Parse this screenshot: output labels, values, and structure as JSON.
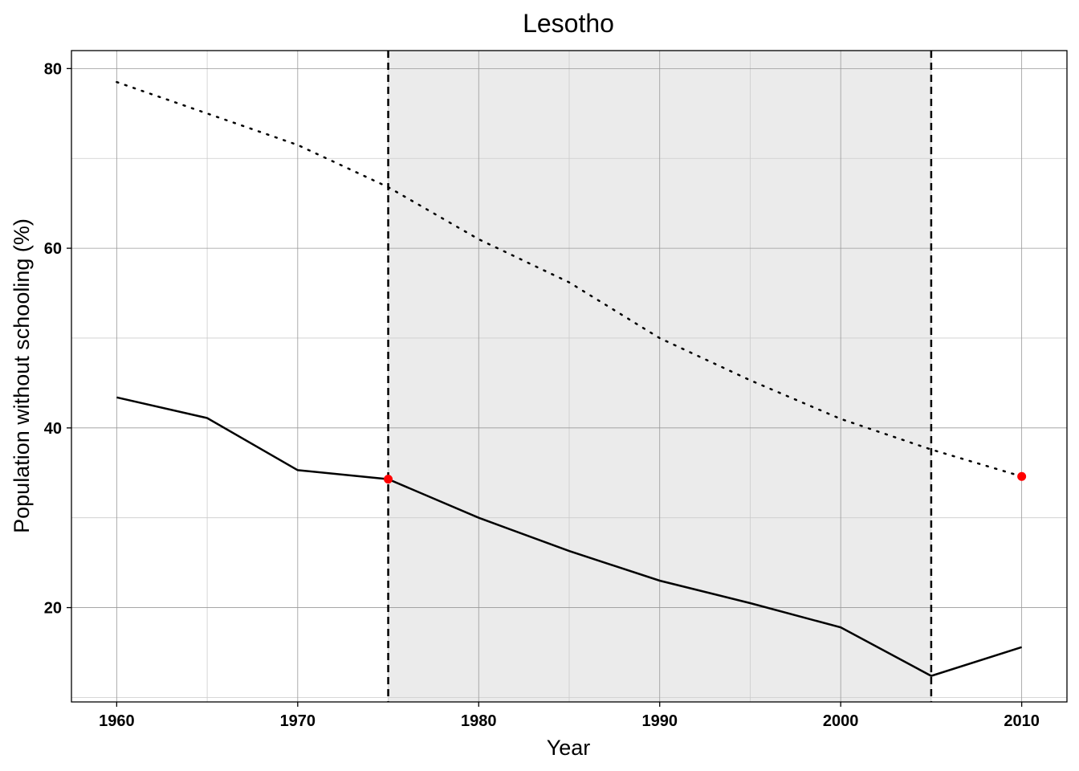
{
  "chart_data": {
    "type": "line",
    "title": "Lesotho",
    "xlabel": "Year",
    "ylabel": "Population without schooling (%)",
    "xlim": [
      1957.5,
      2012.5
    ],
    "ylim": [
      9.5,
      82
    ],
    "x_ticks": [
      "1960",
      "1970",
      "1980",
      "1990",
      "2000",
      "2010"
    ],
    "y_ticks": [
      "20",
      "40",
      "60",
      "80"
    ],
    "grid": true,
    "shaded_region": {
      "from": 1975,
      "to": 2005,
      "color": "#ebebeb"
    },
    "vertical_lines": [
      1975,
      2005
    ],
    "series": [
      {
        "style": "solid",
        "x": [
          1960,
          1965,
          1970,
          1975,
          1980,
          1985,
          1990,
          1995,
          2000,
          2005,
          2010
        ],
        "y": [
          43.4,
          41.1,
          35.3,
          34.3,
          30.0,
          26.3,
          23.0,
          20.5,
          17.8,
          12.4,
          15.6
        ]
      },
      {
        "style": "dotted",
        "x": [
          1960,
          1965,
          1970,
          1975,
          1980,
          1985,
          1990,
          1995,
          2000,
          2005,
          2010
        ],
        "y": [
          78.5,
          75.0,
          71.5,
          66.8,
          61.0,
          56.2,
          50.0,
          45.3,
          41.0,
          37.6,
          34.6
        ]
      }
    ],
    "highlight_points": [
      {
        "x": 1975,
        "y": 34.3,
        "color": "#ff0000"
      },
      {
        "x": 2010,
        "y": 34.6,
        "color": "#ff0000"
      }
    ],
    "colors": {
      "line": "#000000",
      "point": "#ff0000",
      "shade": "#ebebeb",
      "grid_major": "#999999",
      "grid_minor": "#cccccc"
    }
  }
}
